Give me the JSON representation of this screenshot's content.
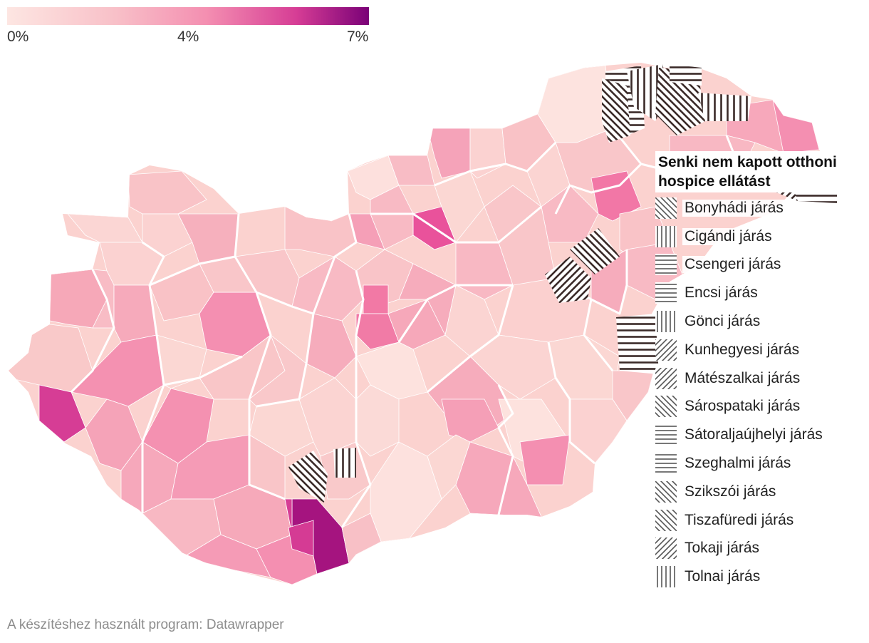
{
  "colorbar": {
    "ticks": [
      {
        "label": "0%",
        "value": 0
      },
      {
        "label": "4%",
        "value": 4
      },
      {
        "label": "7%",
        "value": 7
      }
    ],
    "min": 0,
    "max": 7,
    "colors": [
      "#fde6e2",
      "#f6a7b8",
      "#f06aa2",
      "#c21983",
      "#7a0177"
    ]
  },
  "legend": {
    "title": "Senki nem kapott otthoni hospice ellátást",
    "items": [
      {
        "label": "Bonyhádi járás",
        "pattern": "diag-back"
      },
      {
        "label": "Cigándi járás",
        "pattern": "vertical"
      },
      {
        "label": "Csengeri járás",
        "pattern": "horizontal"
      },
      {
        "label": "Encsi járás",
        "pattern": "horizontal"
      },
      {
        "label": "Gönci járás",
        "pattern": "vertical"
      },
      {
        "label": "Kunhegyesi járás",
        "pattern": "diag-fwd"
      },
      {
        "label": "Mátészalkai járás",
        "pattern": "diag-fwd"
      },
      {
        "label": "Sárospataki járás",
        "pattern": "diag-back"
      },
      {
        "label": "Sátoraljaújhelyi járás",
        "pattern": "horizontal"
      },
      {
        "label": "Szeghalmi járás",
        "pattern": "horizontal"
      },
      {
        "label": "Szikszói járás",
        "pattern": "diag-back"
      },
      {
        "label": "Tiszafüredi járás",
        "pattern": "diag-back"
      },
      {
        "label": "Tokaji járás",
        "pattern": "diag-fwd"
      },
      {
        "label": "Tolnai járás",
        "pattern": "vertical"
      }
    ]
  },
  "footer": "A készítéshez használt program: Datawrapper"
}
